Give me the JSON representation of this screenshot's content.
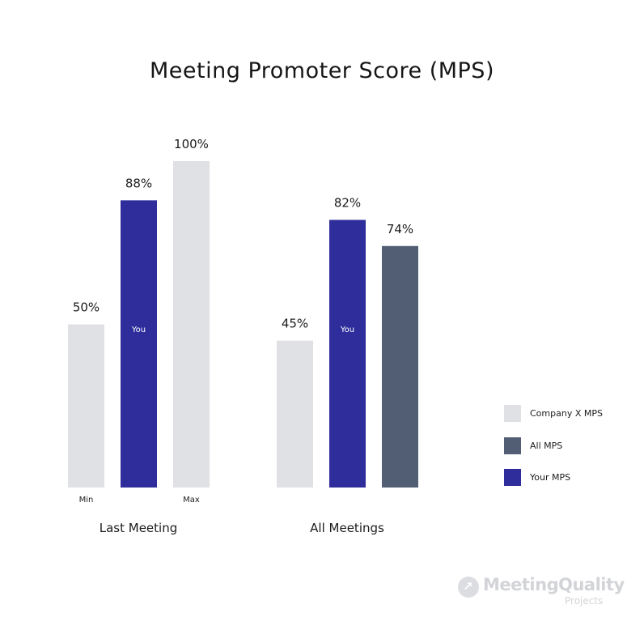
{
  "chart_data": {
    "type": "bar",
    "title": "Meeting Promoter Score (MPS)",
    "ylim": [
      0,
      100
    ],
    "grid": false,
    "legend_position": "right",
    "legend": [
      {
        "label": "Company X MPS",
        "color": "#e0e1e5"
      },
      {
        "label": "All MPS",
        "color": "#525e74"
      },
      {
        "label": "Your MPS",
        "color": "#2e2d9b"
      }
    ],
    "groups": [
      {
        "name": "Last Meeting",
        "bars": [
          {
            "value": 50,
            "value_label": "50%",
            "series": "Company X MPS",
            "color": "#e0e1e5",
            "inner_label": "",
            "axis_label": "Min"
          },
          {
            "value": 88,
            "value_label": "88%",
            "series": "Your MPS",
            "color": "#2e2d9b",
            "inner_label": "You",
            "axis_label": ""
          },
          {
            "value": 100,
            "value_label": "100%",
            "series": "Company X MPS",
            "color": "#e0e1e5",
            "inner_label": "",
            "axis_label": "Max"
          }
        ]
      },
      {
        "name": "All Meetings",
        "bars": [
          {
            "value": 45,
            "value_label": "45%",
            "series": "Company X MPS",
            "color": "#e0e1e5",
            "inner_label": "",
            "axis_label": ""
          },
          {
            "value": 82,
            "value_label": "82%",
            "series": "Your MPS",
            "color": "#2e2d9b",
            "inner_label": "You",
            "axis_label": ""
          },
          {
            "value": 74,
            "value_label": "74%",
            "series": "All MPS",
            "color": "#525e74",
            "inner_label": "",
            "axis_label": ""
          }
        ]
      }
    ]
  },
  "branding": {
    "logo_name": "MeetingQuality",
    "logo_sub": "Projects",
    "logo_icon": "arrow-up-right-icon"
  }
}
